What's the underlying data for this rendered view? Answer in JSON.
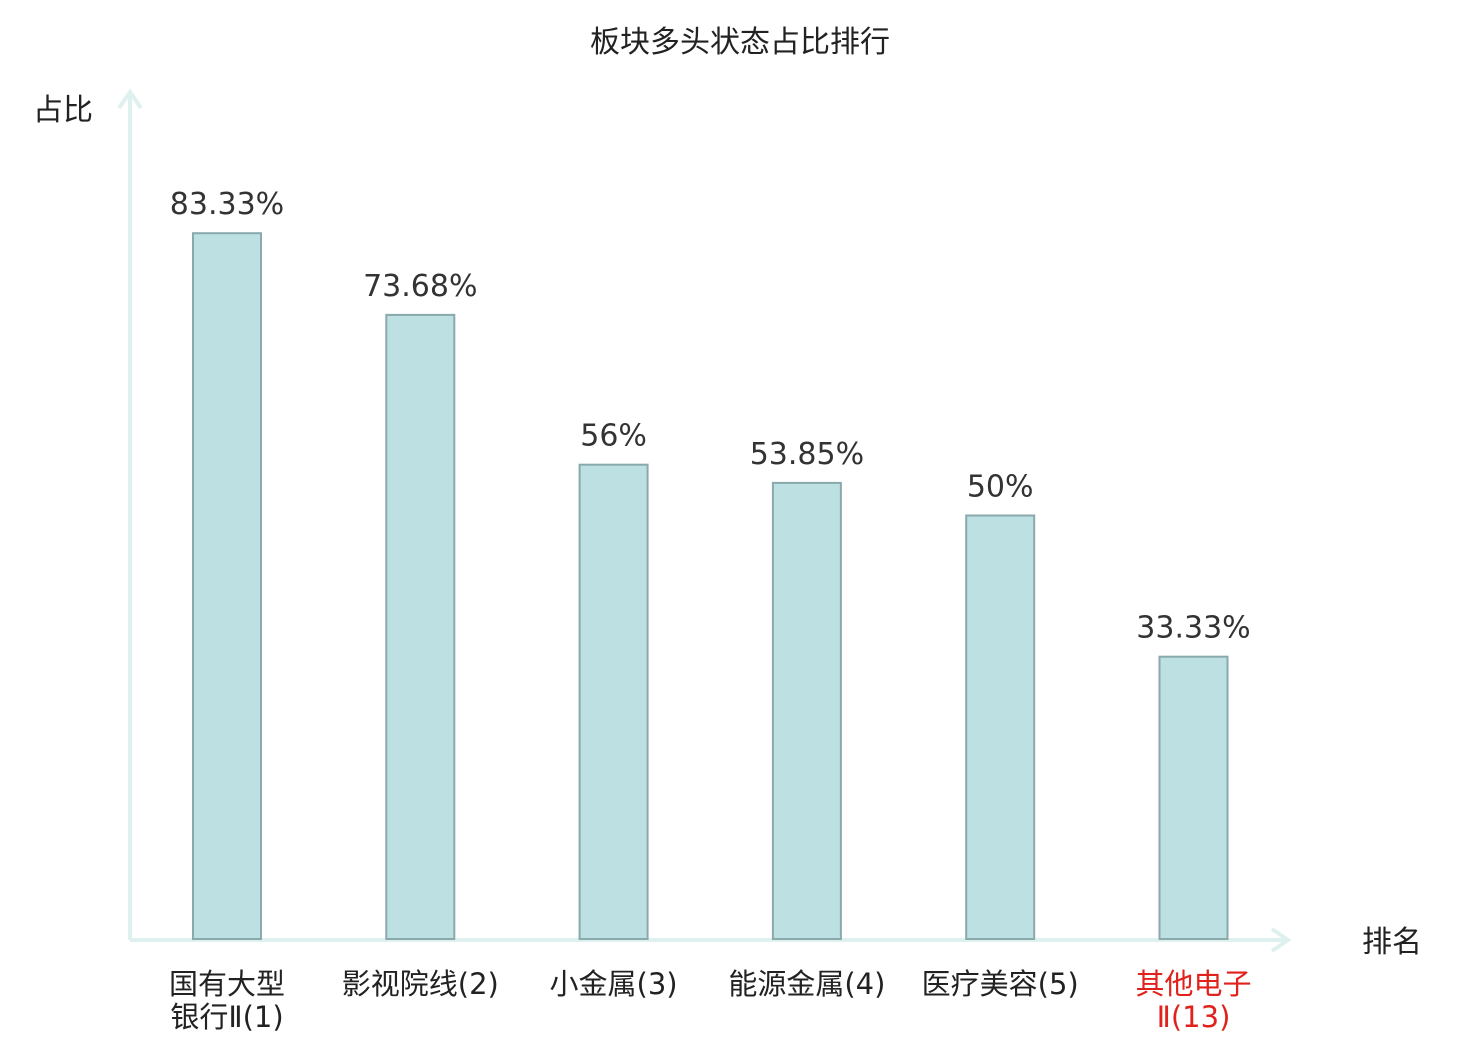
{
  "chart_data": {
    "type": "bar",
    "title": "板块多头状态占比排行",
    "ylabel": "占比",
    "xlabel": "排名",
    "ylim": [
      0,
      100
    ],
    "grid": false,
    "categories": [
      {
        "lines": [
          "国有大型",
          "银行Ⅱ(1)"
        ],
        "highlight": false
      },
      {
        "lines": [
          "影视院线(2)"
        ],
        "highlight": false
      },
      {
        "lines": [
          "小金属(3)"
        ],
        "highlight": false
      },
      {
        "lines": [
          "能源金属(4)"
        ],
        "highlight": false
      },
      {
        "lines": [
          "医疗美容(5)"
        ],
        "highlight": false
      },
      {
        "lines": [
          "其他电子",
          "Ⅱ(13)"
        ],
        "highlight": true
      }
    ],
    "values": [
      83.33,
      73.68,
      56,
      53.85,
      50,
      33.33
    ],
    "value_labels": [
      "83.33%",
      "73.68%",
      "56%",
      "53.85%",
      "50%",
      "33.33%"
    ]
  },
  "colors": {
    "bar_fill": "#bde0e3",
    "bar_stroke": "#8aa9ad",
    "axis": "#dff1ee",
    "text": "#222222",
    "value_text": "#333333",
    "highlight": "#e0211c"
  }
}
